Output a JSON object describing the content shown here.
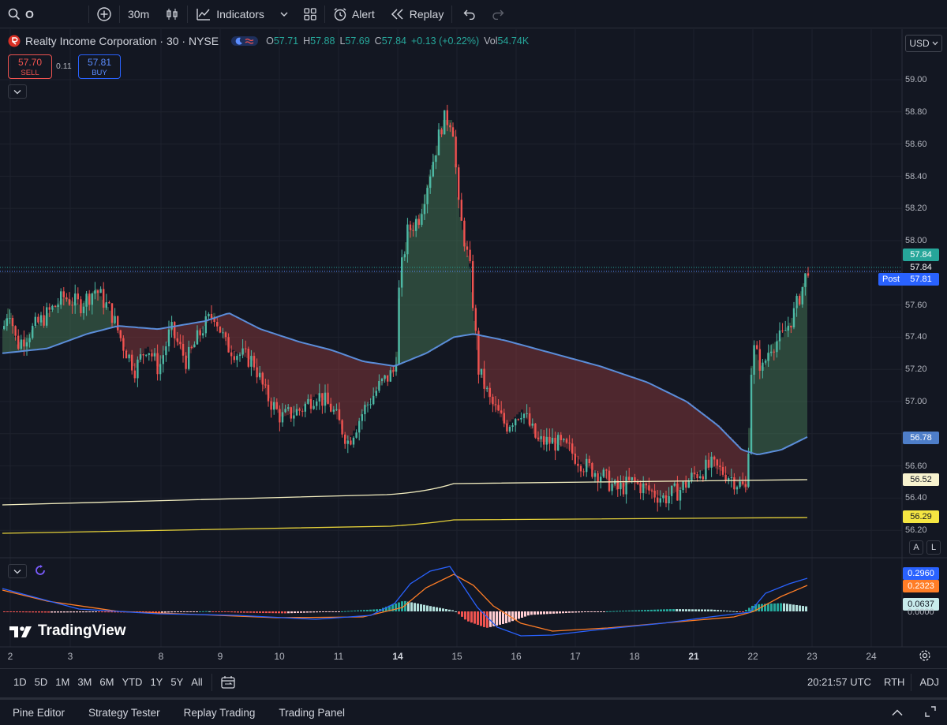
{
  "toolbar": {
    "symbol_search": "O",
    "interval": "30m",
    "indicators_label": "Indicators",
    "alert_label": "Alert",
    "replay_label": "Replay"
  },
  "legend": {
    "title": "Realty Income Corporation · 30 · NYSE",
    "open_label": "O",
    "open": "57.71",
    "high_label": "H",
    "high": "57.88",
    "low_label": "L",
    "low": "57.69",
    "close_label": "C",
    "close": "57.84",
    "change": "+0.13 (+0.22%)",
    "vol_label": "Vol",
    "volume": "54.74K"
  },
  "trade": {
    "sell_price": "57.70",
    "sell_label": "SELL",
    "spread": "0.11",
    "buy_price": "57.81",
    "buy_label": "BUY"
  },
  "currency": "USD",
  "price_axis": [
    "59.00",
    "58.80",
    "58.60",
    "58.40",
    "58.20",
    "58.00",
    "57.60",
    "57.40",
    "57.20",
    "57.00",
    "56.60",
    "56.40",
    "56.20"
  ],
  "price_tags": {
    "last_green": "57.84",
    "last_dark": "57.84",
    "post_label": "Post",
    "post_value": "57.81",
    "ema_blue": "56.78",
    "ma_light": "56.52",
    "ma_yellow": "56.29"
  },
  "scale_buttons": {
    "auto": "A",
    "log": "L"
  },
  "macd_tags": {
    "macd": "0.2960",
    "signal": "0.2323",
    "hist": "0.0637",
    "zero": "0.0000"
  },
  "watermark": "TradingView",
  "time_axis": [
    "2",
    "3",
    "8",
    "9",
    "10",
    "11",
    "14",
    "15",
    "16",
    "17",
    "18",
    "21",
    "22",
    "23",
    "24"
  ],
  "ranges": [
    "1D",
    "5D",
    "1M",
    "3M",
    "6M",
    "YTD",
    "1Y",
    "5Y",
    "All"
  ],
  "clock": "20:21:57 UTC",
  "session": "RTH",
  "adj": "ADJ",
  "footer_tabs": [
    "Pine Editor",
    "Strategy Tester",
    "Replay Trading",
    "Trading Panel"
  ],
  "colors": {
    "bg": "#131722",
    "up": "#26a69a",
    "down": "#ef5350",
    "ema": "#5b8dd9",
    "ma_light": "#f3eec0",
    "ma_yellow": "#e6d23a",
    "macd": "#2962ff",
    "signal": "#ff7d26"
  }
}
